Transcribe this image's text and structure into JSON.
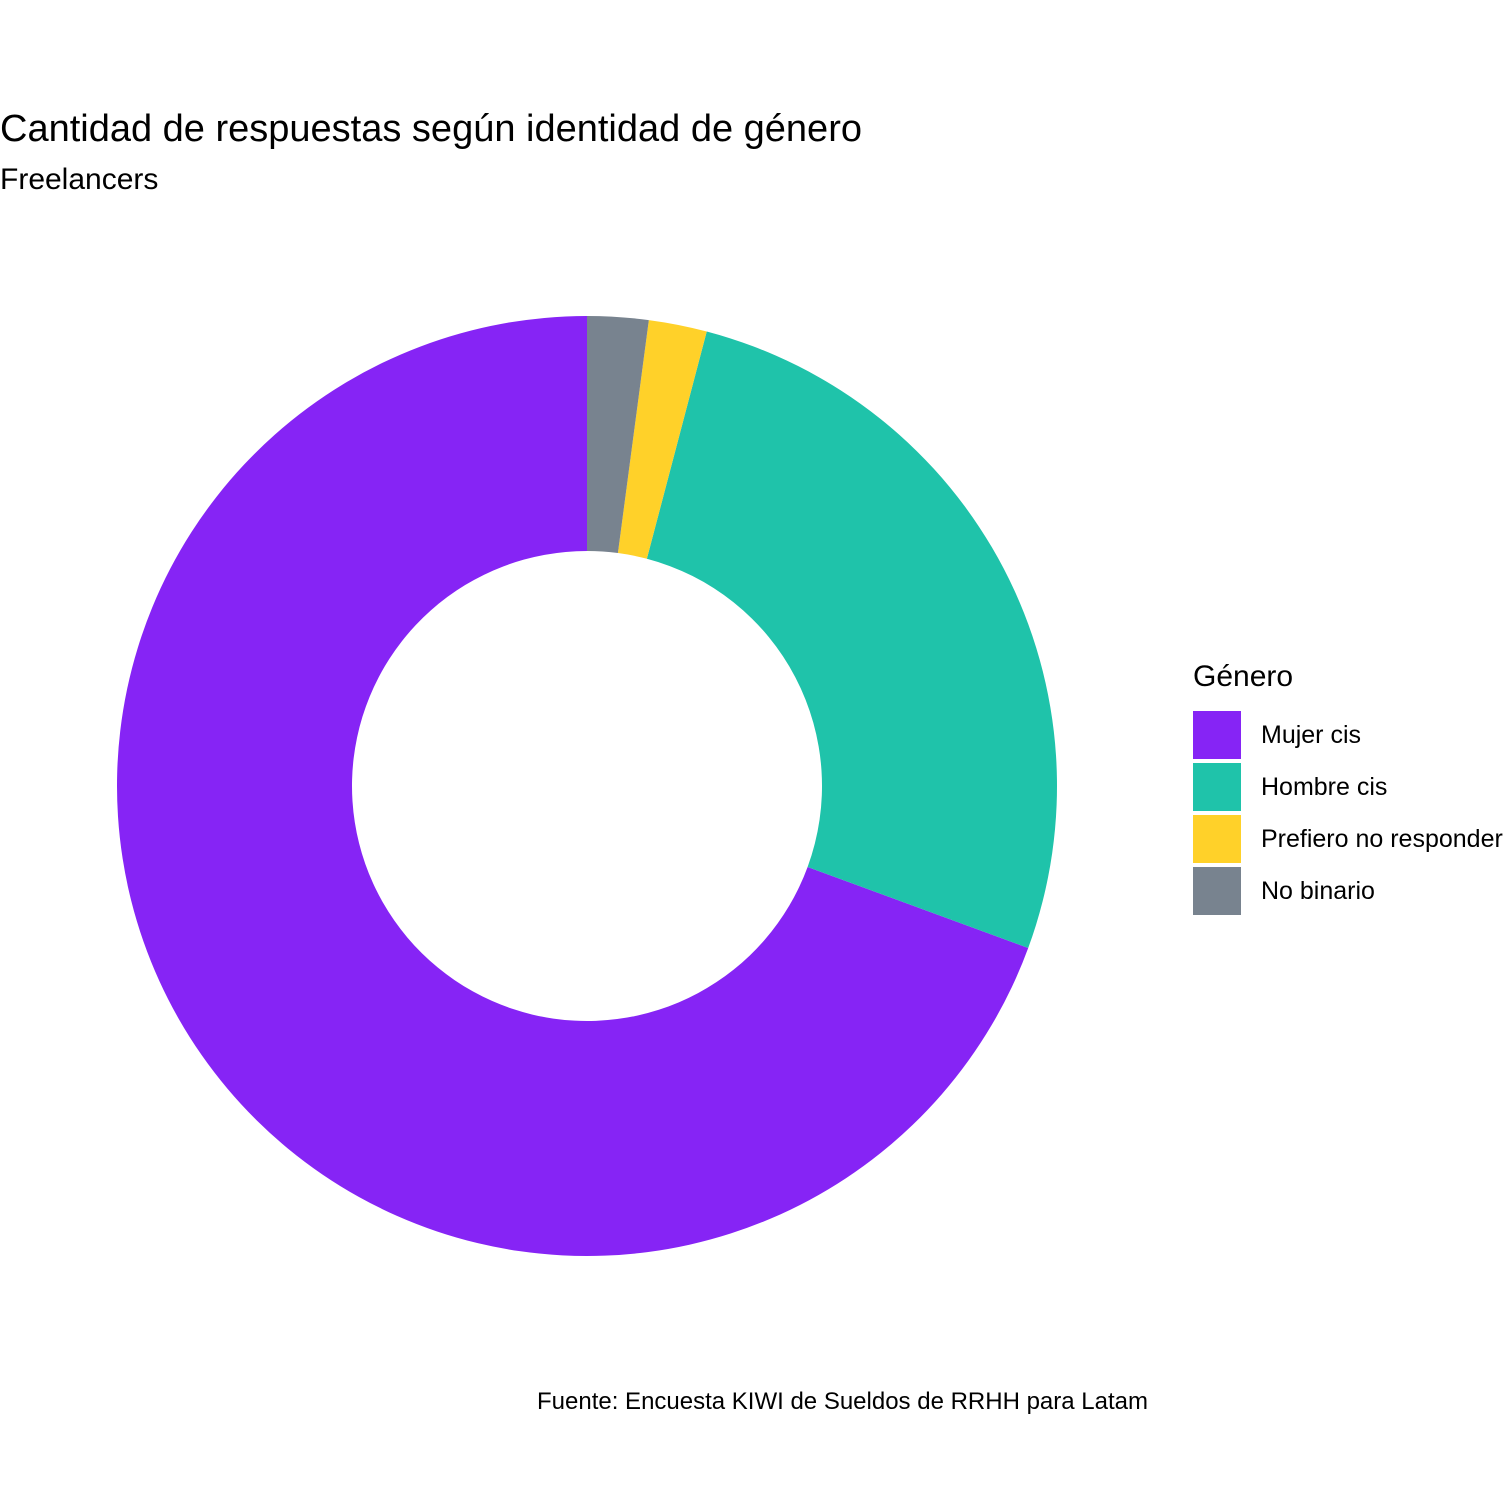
{
  "chart_data": {
    "type": "pie",
    "variant": "donut",
    "title": "Cantidad de respuestas según identidad de género",
    "subtitle": "Freelancers",
    "caption": "Fuente: Encuesta KIWI de Sueldos de RRHH para Latam",
    "legend_title": "Género",
    "legend_placement": "right",
    "series": [
      {
        "name": "Mujer cis",
        "value": 69.4,
        "color": "#8624F5"
      },
      {
        "name": "Hombre cis",
        "value": 26.5,
        "color": "#1FC3AA"
      },
      {
        "name": "Prefiero no responder",
        "value": 2.0,
        "color": "#FFD129"
      },
      {
        "name": "No binario",
        "value": 2.1,
        "color": "#78838F"
      }
    ]
  }
}
